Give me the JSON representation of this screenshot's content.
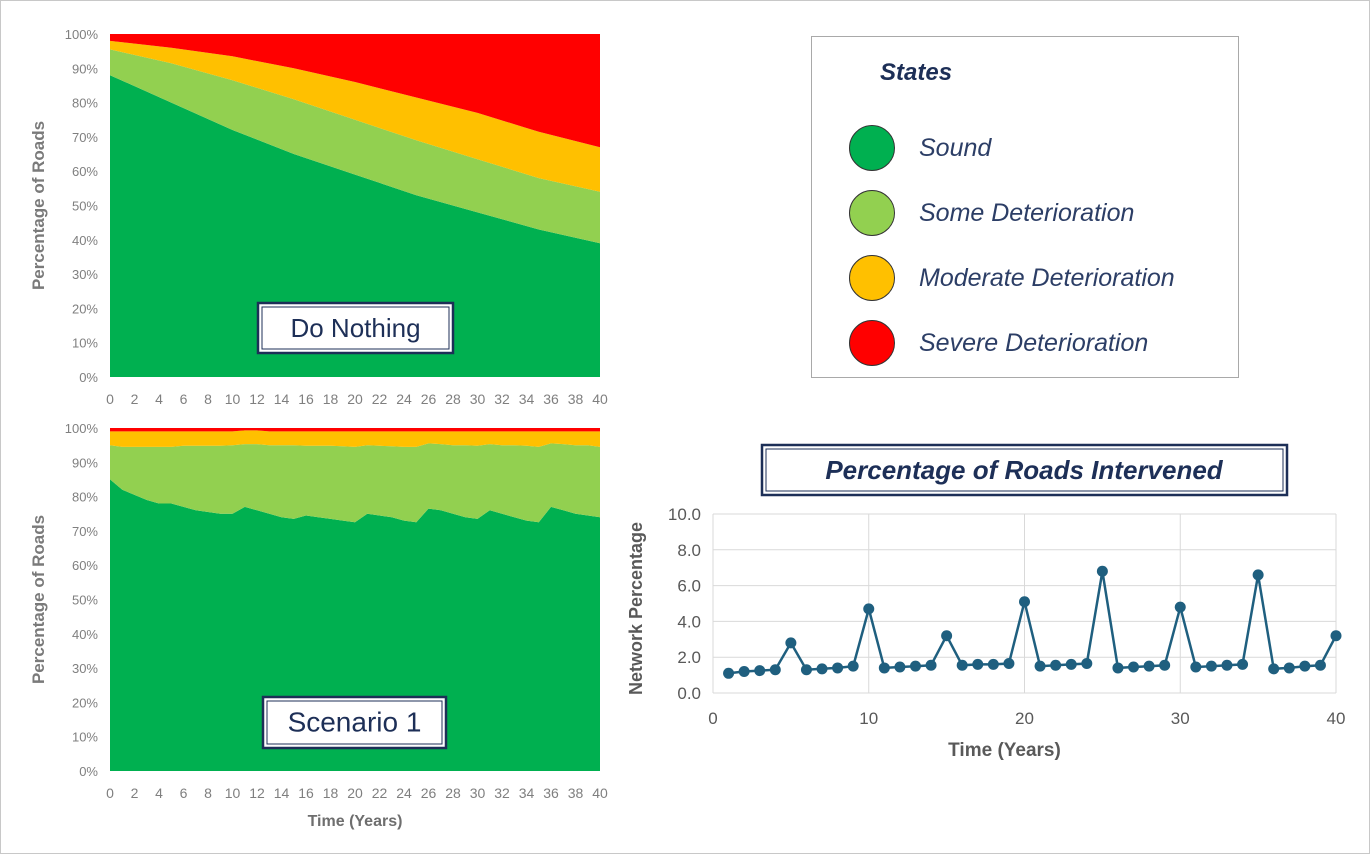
{
  "legend": {
    "title": "States",
    "items": [
      {
        "label": "Sound",
        "color": "#00b050"
      },
      {
        "label": "Some Deterioration",
        "color": "#92d050"
      },
      {
        "label": "Moderate Deterioration",
        "color": "#ffc000"
      },
      {
        "label": "Severe Deterioration",
        "color": "#ff0000"
      }
    ]
  },
  "chart_data": [
    {
      "type": "area",
      "stacked": true,
      "label_box": "Do Nothing",
      "ylabel": "Percentage of Roads",
      "xlabel": "",
      "ylim": [
        0,
        100
      ],
      "x": [
        0,
        5,
        10,
        15,
        20,
        25,
        30,
        35,
        40
      ],
      "x_ticks": [
        0,
        2,
        4,
        6,
        8,
        10,
        12,
        14,
        16,
        18,
        20,
        22,
        24,
        26,
        28,
        30,
        32,
        34,
        36,
        38,
        40
      ],
      "y_ticks": [
        "0%",
        "10%",
        "20%",
        "30%",
        "40%",
        "50%",
        "60%",
        "70%",
        "80%",
        "90%",
        "100%"
      ],
      "series": [
        {
          "name": "Sound",
          "color": "#00b050",
          "values": [
            88,
            80,
            72,
            65,
            59,
            53,
            48,
            43,
            39
          ]
        },
        {
          "name": "Some Deterioration",
          "color": "#92d050",
          "values": [
            7.5,
            11.5,
            14.5,
            16,
            16,
            16,
            15.5,
            15,
            15
          ]
        },
        {
          "name": "Moderate Deterioration",
          "color": "#ffc000",
          "values": [
            2.5,
            4.5,
            7,
            9,
            11,
            12.5,
            13.5,
            13.5,
            13
          ]
        },
        {
          "name": "Severe Deterioration",
          "color": "#ff0000",
          "values": [
            2,
            4,
            6.5,
            10,
            14,
            18.5,
            23,
            28.5,
            33
          ]
        }
      ]
    },
    {
      "type": "area",
      "stacked": true,
      "label_box": "Scenario 1",
      "ylabel": "Percentage of Roads",
      "xlabel": "Time (Years)",
      "ylim": [
        0,
        100
      ],
      "x": [
        0,
        1,
        2,
        3,
        4,
        5,
        6,
        7,
        8,
        9,
        10,
        11,
        12,
        13,
        14,
        15,
        16,
        17,
        18,
        19,
        20,
        21,
        22,
        23,
        24,
        25,
        26,
        27,
        28,
        29,
        30,
        31,
        32,
        33,
        34,
        35,
        36,
        37,
        38,
        39,
        40
      ],
      "x_ticks": [
        0,
        2,
        4,
        6,
        8,
        10,
        12,
        14,
        16,
        18,
        20,
        22,
        24,
        26,
        28,
        30,
        32,
        34,
        36,
        38,
        40
      ],
      "y_ticks": [
        "0%",
        "10%",
        "20%",
        "30%",
        "40%",
        "50%",
        "60%",
        "70%",
        "80%",
        "90%",
        "100%"
      ],
      "series": [
        {
          "name": "Sound",
          "color": "#00b050",
          "values": [
            85,
            82,
            80.5,
            79,
            78,
            78,
            77,
            76,
            75.5,
            75,
            75,
            77,
            76,
            75,
            74,
            73.5,
            74.5,
            74,
            73.5,
            73,
            72.5,
            75,
            74.5,
            74,
            73,
            72.5,
            76.5,
            76,
            75,
            74,
            73.5,
            76,
            75,
            74,
            73,
            72.5,
            77,
            76,
            75,
            74.5,
            74
          ]
        },
        {
          "name": "Some Deterioration",
          "color": "#92d050",
          "values": [
            10,
            12.5,
            14,
            15.5,
            16.5,
            16.5,
            17.8,
            18.8,
            19.3,
            19.8,
            20,
            18.3,
            19.3,
            20,
            21,
            21.5,
            20.3,
            20.8,
            21.3,
            21.7,
            22,
            20,
            20.3,
            20.7,
            21.5,
            22,
            19,
            19.3,
            20,
            21,
            21.3,
            19.3,
            20,
            21,
            21.8,
            22,
            18.5,
            19.3,
            20,
            20.5,
            20.5
          ]
        },
        {
          "name": "Moderate Deterioration",
          "color": "#ffc000",
          "values": [
            4,
            4.5,
            4.5,
            4.5,
            4.5,
            4.5,
            4.2,
            4.2,
            4.2,
            4.2,
            4,
            4,
            4,
            4,
            4,
            4,
            4.2,
            4.2,
            4.2,
            4.3,
            4.5,
            4,
            4.2,
            4.3,
            4.5,
            4.5,
            3.5,
            3.7,
            4,
            4,
            4.2,
            3.7,
            4,
            4,
            4.2,
            4.5,
            3.5,
            3.7,
            4,
            4,
            4.5
          ]
        },
        {
          "name": "Severe Deterioration",
          "color": "#ff0000",
          "values": [
            1,
            1,
            1,
            1,
            1,
            1,
            1,
            1,
            1,
            1,
            1,
            0.7,
            0.7,
            1,
            1,
            1,
            1,
            1,
            1,
            1,
            1,
            1,
            1,
            1,
            1,
            1,
            1,
            1,
            1,
            1,
            1,
            1,
            1,
            1,
            1,
            1,
            1,
            1,
            1,
            1,
            1
          ]
        }
      ]
    },
    {
      "type": "line",
      "title": "Percentage of Roads Intervened",
      "xlabel": "Time (Years)",
      "ylabel": "Network Percentage",
      "xlim": [
        0,
        40
      ],
      "ylim": [
        0,
        10
      ],
      "x_ticks": [
        0,
        10,
        20,
        30,
        40
      ],
      "y_ticks": [
        "0.0",
        "2.0",
        "4.0",
        "6.0",
        "8.0",
        "10.0"
      ],
      "color": "#1f5f7f",
      "x": [
        1,
        2,
        3,
        4,
        5,
        6,
        7,
        8,
        9,
        10,
        11,
        12,
        13,
        14,
        15,
        16,
        17,
        18,
        19,
        20,
        21,
        22,
        23,
        24,
        25,
        26,
        27,
        28,
        29,
        30,
        31,
        32,
        33,
        34,
        35,
        36,
        37,
        38,
        39,
        40
      ],
      "values": [
        1.1,
        1.2,
        1.25,
        1.3,
        2.8,
        1.3,
        1.35,
        1.4,
        1.5,
        4.7,
        1.4,
        1.45,
        1.5,
        1.55,
        3.2,
        1.55,
        1.6,
        1.6,
        1.65,
        5.1,
        1.5,
        1.55,
        1.6,
        1.65,
        6.8,
        1.4,
        1.45,
        1.5,
        1.55,
        4.8,
        1.45,
        1.5,
        1.55,
        1.6,
        6.6,
        1.35,
        1.4,
        1.5,
        1.55,
        3.2
      ]
    }
  ]
}
